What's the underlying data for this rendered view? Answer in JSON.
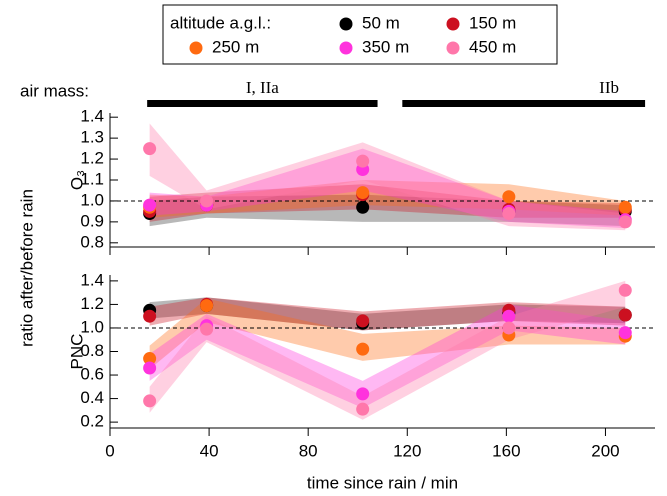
{
  "legend_title": "altitude a.g.l.:",
  "ylabel": "ratio after/before rain",
  "chart_data": [
    {
      "type": "scatter",
      "panel_label": "O₃",
      "air_mass": {
        "label": "air mass:",
        "periods": [
          {
            "label": "I, IIa",
            "x": [
              15,
              108
            ]
          },
          {
            "label": "IIb",
            "x": [
              118,
              216
            ]
          }
        ]
      },
      "x": [
        16,
        39,
        102,
        161,
        208
      ],
      "xlim": [
        0,
        220
      ],
      "xticks": [
        0,
        40,
        80,
        120,
        160,
        200
      ],
      "ylim": [
        0.78,
        1.42
      ],
      "yticks": [
        0.8,
        0.9,
        {
          "value": 1,
          "label": "1.0"
        },
        1.1,
        1.2,
        1.3,
        1.4
      ],
      "refline": 1,
      "series": [
        {
          "name": "50 m",
          "color": "#000000",
          "values": [
            0.94,
            0.98,
            0.97,
            0.95,
            0.95
          ],
          "lower": [
            0.88,
            0.92,
            0.9,
            0.9,
            0.88
          ],
          "upper": [
            1.0,
            1.02,
            1.03,
            1.0,
            0.98
          ]
        },
        {
          "name": "150 m",
          "color": "#cc1020",
          "values": [
            0.95,
            0.98,
            1.03,
            0.96,
            0.96
          ],
          "lower": [
            0.9,
            0.94,
            0.96,
            0.92,
            0.92
          ],
          "upper": [
            1.02,
            1.04,
            1.08,
            1.0,
            0.99
          ]
        },
        {
          "name": "250 m",
          "color": "#ff6a10",
          "values": [
            0.97,
            0.98,
            1.04,
            1.02,
            0.97
          ],
          "lower": [
            0.92,
            0.94,
            0.98,
            0.96,
            0.93
          ],
          "upper": [
            1.03,
            1.02,
            1.1,
            1.08,
            1.0
          ]
        },
        {
          "name": "350 m",
          "color": "#ff33dd",
          "values": [
            0.98,
            0.98,
            1.15,
            0.95,
            0.91
          ],
          "lower": [
            0.93,
            0.95,
            1.05,
            0.9,
            0.87
          ],
          "upper": [
            1.04,
            1.02,
            1.25,
            1.0,
            0.95
          ]
        },
        {
          "name": "450 m",
          "color": "#ff77aa",
          "values": [
            1.25,
            1.0,
            1.19,
            0.94,
            0.9
          ],
          "lower": [
            1.12,
            0.96,
            1.1,
            0.88,
            0.86
          ],
          "upper": [
            1.37,
            1.05,
            1.28,
            1.0,
            0.94
          ]
        }
      ]
    },
    {
      "type": "scatter",
      "panel_label": "PNC",
      "xlabel": "time since rain / min",
      "x": [
        16,
        39,
        102,
        161,
        208
      ],
      "xlim": [
        0,
        220
      ],
      "xticks": [
        0,
        40,
        80,
        120,
        160,
        200
      ],
      "ylim": [
        0.15,
        1.45
      ],
      "yticks": [
        0.2,
        0.4,
        0.6,
        0.8,
        {
          "value": 1,
          "label": "1.0"
        },
        1.2,
        1.4
      ],
      "refline": 1,
      "series": [
        {
          "color": "#000000",
          "values": [
            1.15,
            1.19,
            1.04,
            1.13,
            1.11
          ],
          "lower": [
            1.08,
            1.12,
            0.98,
            1.06,
            1.04
          ],
          "upper": [
            1.22,
            1.26,
            1.12,
            1.2,
            1.18
          ]
        },
        {
          "color": "#cc1020",
          "values": [
            1.1,
            1.2,
            1.06,
            1.15,
            1.11
          ],
          "lower": [
            1.02,
            1.12,
            0.98,
            1.06,
            1.02
          ],
          "upper": [
            1.18,
            1.26,
            1.14,
            1.22,
            1.18
          ]
        },
        {
          "color": "#ff6a10",
          "values": [
            0.74,
            1.19,
            0.82,
            0.94,
            0.93
          ],
          "lower": [
            0.65,
            1.05,
            0.72,
            0.86,
            0.86
          ],
          "upper": [
            0.85,
            1.25,
            0.95,
            1.02,
            1.0
          ]
        },
        {
          "color": "#ff33dd",
          "values": [
            0.66,
            1.02,
            0.44,
            1.1,
            0.96
          ],
          "lower": [
            0.55,
            0.9,
            0.32,
            0.98,
            0.86
          ],
          "upper": [
            0.78,
            1.12,
            0.55,
            1.2,
            1.06
          ]
        },
        {
          "color": "#ff77aa",
          "values": [
            0.38,
            0.99,
            0.31,
            1.0,
            1.32
          ],
          "lower": [
            0.28,
            0.88,
            0.22,
            0.9,
            1.18
          ],
          "upper": [
            0.5,
            1.1,
            0.42,
            1.1,
            1.4
          ]
        }
      ]
    }
  ]
}
